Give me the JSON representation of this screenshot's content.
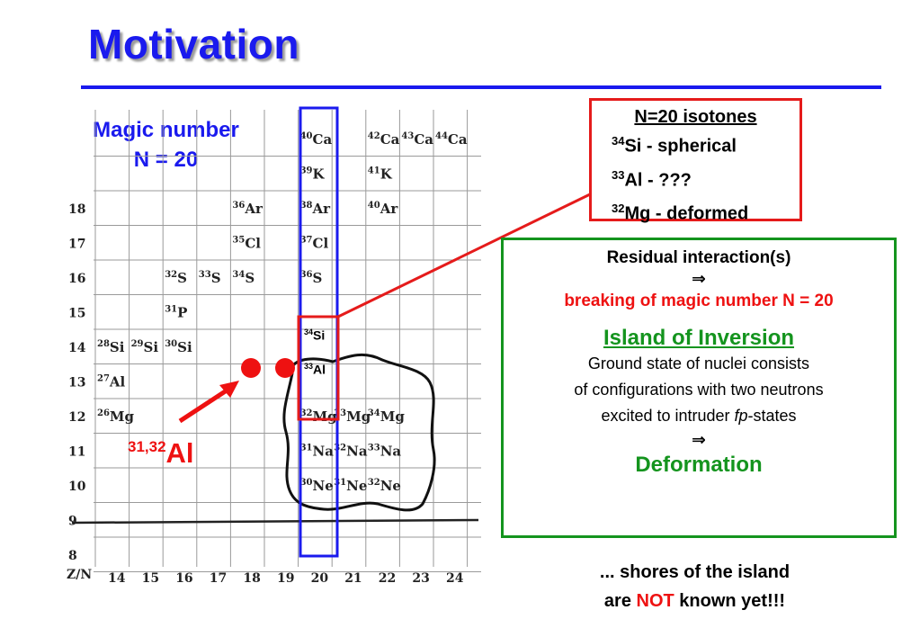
{
  "slide": {
    "title": "Motivation",
    "magic_number": {
      "line1": "Magic number",
      "line2": "N = 20"
    }
  },
  "chart": {
    "corner_label": "Z/N",
    "z_values": [
      "18",
      "17",
      "16",
      "15",
      "14",
      "13",
      "12",
      "11",
      "10",
      "9",
      "8"
    ],
    "n_values": [
      "14",
      "15",
      "16",
      "17",
      "18",
      "19",
      "20",
      "21",
      "22",
      "23",
      "24"
    ],
    "isotopes": [
      {
        "mass": "40",
        "el": "Ca",
        "n": 20,
        "z": 20
      },
      {
        "mass": "42",
        "el": "Ca",
        "n": 22,
        "z": 20
      },
      {
        "mass": "43",
        "el": "Ca",
        "n": 23,
        "z": 20
      },
      {
        "mass": "44",
        "el": "Ca",
        "n": 24,
        "z": 20
      },
      {
        "mass": "39",
        "el": "K",
        "n": 20,
        "z": 19
      },
      {
        "mass": "41",
        "el": "K",
        "n": 22,
        "z": 19
      },
      {
        "mass": "36",
        "el": "Ar",
        "n": 18,
        "z": 18
      },
      {
        "mass": "38",
        "el": "Ar",
        "n": 20,
        "z": 18
      },
      {
        "mass": "40",
        "el": "Ar",
        "n": 22,
        "z": 18
      },
      {
        "mass": "35",
        "el": "Cl",
        "n": 18,
        "z": 17
      },
      {
        "mass": "37",
        "el": "Cl",
        "n": 20,
        "z": 17
      },
      {
        "mass": "32",
        "el": "S",
        "n": 16,
        "z": 16
      },
      {
        "mass": "33",
        "el": "S",
        "n": 17,
        "z": 16
      },
      {
        "mass": "34",
        "el": "S",
        "n": 18,
        "z": 16
      },
      {
        "mass": "36",
        "el": "S",
        "n": 20,
        "z": 16
      },
      {
        "mass": "31",
        "el": "P",
        "n": 16,
        "z": 15
      },
      {
        "mass": "28",
        "el": "Si",
        "n": 14,
        "z": 14
      },
      {
        "mass": "29",
        "el": "Si",
        "n": 15,
        "z": 14
      },
      {
        "mass": "30",
        "el": "Si",
        "n": 16,
        "z": 14
      },
      {
        "mass": "27",
        "el": "Al",
        "n": 14,
        "z": 13
      },
      {
        "mass": "26",
        "el": "Mg",
        "n": 14,
        "z": 12
      },
      {
        "mass": "32",
        "el": "Mg",
        "n": 20,
        "z": 12
      },
      {
        "mass": "33",
        "el": "Mg",
        "n": 21,
        "z": 12
      },
      {
        "mass": "34",
        "el": "Mg",
        "n": 22,
        "z": 12
      },
      {
        "mass": "31",
        "el": "Na",
        "n": 20,
        "z": 11
      },
      {
        "mass": "32",
        "el": "Na",
        "n": 21,
        "z": 11
      },
      {
        "mass": "33",
        "el": "Na",
        "n": 22,
        "z": 11
      },
      {
        "mass": "30",
        "el": "Ne",
        "n": 20,
        "z": 10
      },
      {
        "mass": "31",
        "el": "Ne",
        "n": 21,
        "z": 10
      },
      {
        "mass": "32",
        "el": "Ne",
        "n": 22,
        "z": 10
      }
    ],
    "highlight": {
      "si": {
        "mass": "34",
        "el": "Si"
      },
      "al": {
        "mass": "33",
        "el": "Al"
      }
    },
    "al_pointer": {
      "mass": "31,32",
      "el": "Al"
    }
  },
  "isotones_box": {
    "heading": "N=20 isotones",
    "lines": [
      {
        "mass": "34",
        "text": "Si - spherical"
      },
      {
        "mass": "33",
        "text": "Al - ???"
      },
      {
        "mass": "32",
        "text": "Mg - deformed"
      }
    ]
  },
  "residual_box": {
    "line1": "Residual interaction(s)",
    "arrow": "⇒",
    "line2": "breaking of magic number N = 20",
    "island_title": "Island of Inversion",
    "body1": "Ground state of nuclei consists",
    "body2": "of configurations with two neutrons",
    "body3_pre": "excited to intruder ",
    "body3_em": "fp",
    "body3_post": "-states",
    "arrow2": "⇒",
    "conclusion": "Deformation"
  },
  "footer": {
    "line1": "... shores of the island",
    "line2_pre": "are ",
    "line2_not": "NOT",
    "line2_post": " known yet!!!"
  },
  "colors": {
    "title_blue": "#1a1aee",
    "accent_red": "#ee1111",
    "accent_green": "#14941e"
  }
}
